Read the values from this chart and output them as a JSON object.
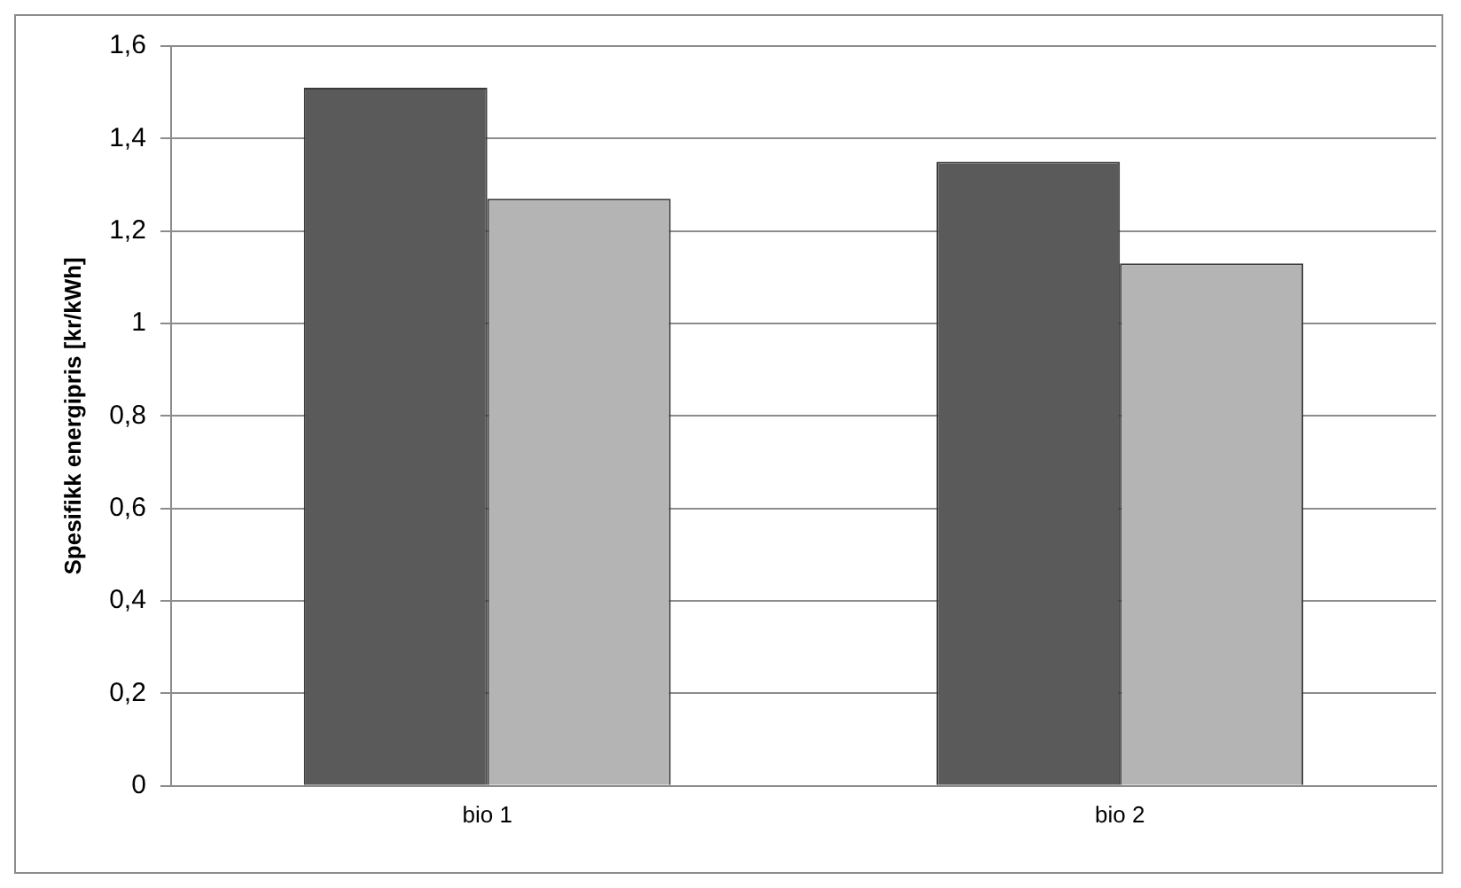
{
  "chart_data": {
    "type": "bar",
    "ylabel": "Spesifikk energipris [kr/kWh]",
    "categories": [
      "bio 1",
      "bio 2"
    ],
    "series": [
      {
        "color": "#5a5a5a",
        "values": [
          1.51,
          1.35
        ]
      },
      {
        "color": "#b4b4b4",
        "values": [
          1.27,
          1.13
        ]
      }
    ],
    "ylim": [
      0,
      1.6
    ],
    "yticks": [
      0,
      {
        "value": 0.2,
        "label": "0,2"
      },
      {
        "value": 0.4,
        "label": "0,4"
      },
      {
        "value": 0.6,
        "label": "0,6"
      },
      {
        "value": 0.8,
        "label": "0,8"
      },
      1,
      {
        "value": 1.2,
        "label": "1,2"
      },
      {
        "value": 1.4,
        "label": "1,4"
      },
      {
        "value": 1.6,
        "label": "1,6"
      }
    ],
    "grid": "y",
    "legend": false
  }
}
